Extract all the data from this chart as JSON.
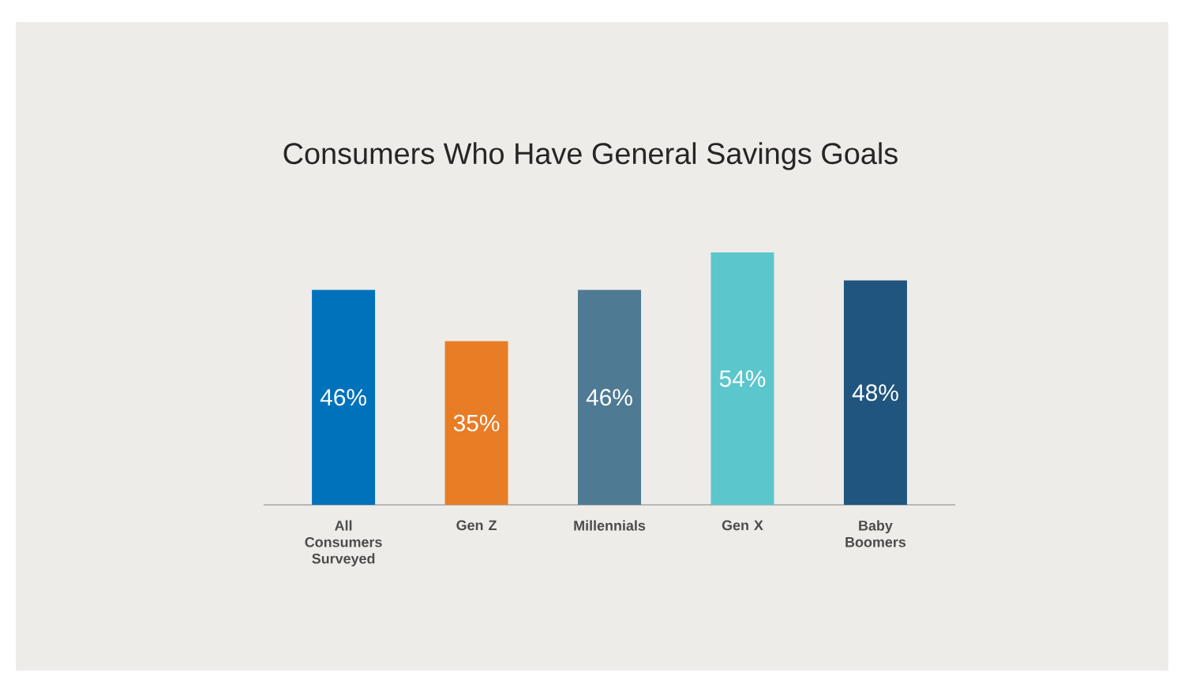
{
  "chart_data": {
    "type": "bar",
    "title": "Consumers Who Have General Savings Goals",
    "categories": [
      "All Consumers Surveyed",
      "Gen Z",
      "Millennials",
      "Gen X",
      "Baby Boomers"
    ],
    "values": [
      46,
      35,
      46,
      54,
      48
    ],
    "value_labels": [
      "46%",
      "35%",
      "46%",
      "54%",
      "48%"
    ],
    "colors": [
      "#0072bc",
      "#e87d26",
      "#4f7a93",
      "#5bc6cc",
      "#1f557f"
    ],
    "data_labels": false
  }
}
